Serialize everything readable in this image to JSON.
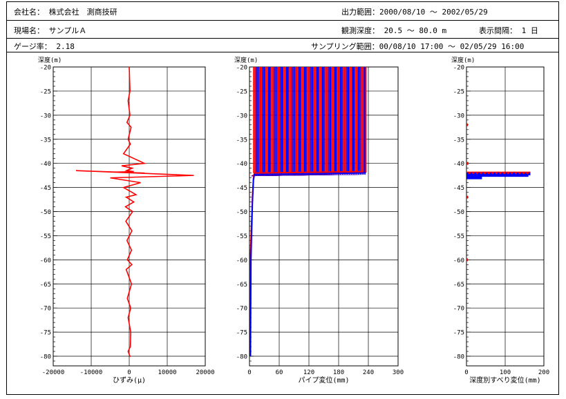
{
  "header": {
    "company": "会社名： 株式会社　測商技研",
    "site": "現場名： サンプルＡ",
    "gauge": "ゲージ率： 2.18",
    "output_range": "出力範囲：2000/08/10 〜 2002/05/29",
    "depth_range": "観測深度： 20.5 〜 80.0 m",
    "interval": "表示間隔： 1 日",
    "sampling": "サンプリング範囲：00/08/10 17:00 〜 02/05/29 16:00"
  },
  "chart_data": [
    {
      "type": "line",
      "title": "",
      "ylabel": "深度(m)",
      "xlabel": "ひずみ(μ)",
      "xlim": [
        -20000,
        20000
      ],
      "ylim": [
        -82,
        -20
      ],
      "xticks": [
        -20000,
        -10000,
        0,
        10000,
        20000
      ],
      "yticks": [
        -20,
        -25,
        -30,
        -35,
        -40,
        -45,
        -50,
        -55,
        -60,
        -65,
        -70,
        -75,
        -80
      ],
      "series": [
        {
          "color": "#ff0000",
          "x": [
            0,
            200,
            -300,
            200,
            -600,
            500,
            -300,
            300,
            -1500,
            4000,
            -2000,
            800,
            -700,
            1200,
            -4000,
            4000,
            -14000,
            17000,
            -5000,
            3000,
            -1500,
            1800,
            -800,
            1200,
            -1000,
            900,
            -900,
            700,
            -600,
            600,
            -500,
            700,
            -800,
            600,
            -500,
            400,
            -300,
            400,
            300,
            -300,
            200,
            0
          ],
          "y": [
            -20,
            -25,
            -27,
            -30,
            -31.5,
            -32.5,
            -35,
            -36,
            -38,
            -40,
            -40.5,
            -41,
            -41.5,
            -41.7,
            -41.8,
            -42,
            -41.5,
            -42.5,
            -43,
            -44,
            -45,
            -46.5,
            -47,
            -48,
            -49,
            -50,
            -52,
            -54,
            -56,
            -58,
            -60,
            -61,
            -62,
            -65,
            -68,
            -70,
            -72,
            -75,
            -78,
            -79,
            -80,
            -80
          ]
        }
      ]
    },
    {
      "type": "line",
      "title": "",
      "ylabel": "深度(m)",
      "xlabel": "パイプ変位(mm)",
      "xlim": [
        0,
        300
      ],
      "ylim": [
        -82,
        -20
      ],
      "xticks": [
        0,
        60,
        120,
        180,
        240,
        300
      ],
      "yticks": [
        -20,
        -25,
        -30,
        -35,
        -40,
        -45,
        -50,
        -55,
        -60,
        -65,
        -70,
        -75,
        -80
      ],
      "series": [
        {
          "color": "#ff0000",
          "x": [
            2,
            2,
            6,
            8,
            10,
            235,
            235
          ],
          "y": [
            -80,
            -59,
            -47,
            -43,
            -42,
            -41.7,
            -20
          ]
        },
        {
          "color": "#0000ff",
          "x": [
            2,
            3,
            6,
            8,
            10,
            232,
            232
          ],
          "y": [
            -80,
            -60,
            -48,
            -43.5,
            -42.3,
            -42,
            -20
          ]
        }
      ],
      "envelope_x_range": [
        0,
        235
      ],
      "envelope_y_range": [
        -42,
        -20
      ]
    },
    {
      "type": "scatter",
      "title": "",
      "ylabel": "深度(m)",
      "xlabel": "深度別すべり変位(mm)",
      "xlim": [
        0,
        200
      ],
      "ylim": [
        -82,
        -20
      ],
      "xticks": [
        0,
        100,
        200
      ],
      "yticks": [
        -20,
        -25,
        -30,
        -35,
        -40,
        -45,
        -50,
        -55,
        -60,
        -65,
        -70,
        -75,
        -80
      ],
      "series": [
        {
          "color": "#ff0000",
          "bars": [
            {
              "y": -32,
              "x": 3
            },
            {
              "y": -40,
              "x": 5
            },
            {
              "y": -42,
              "x": 165
            },
            {
              "y": -47,
              "x": 4
            },
            {
              "y": -60,
              "x": 2
            }
          ]
        },
        {
          "color": "#0000ff",
          "bars": [
            {
              "y": -42.5,
              "x": 160
            },
            {
              "y": -43,
              "x": 40
            }
          ]
        }
      ]
    }
  ]
}
